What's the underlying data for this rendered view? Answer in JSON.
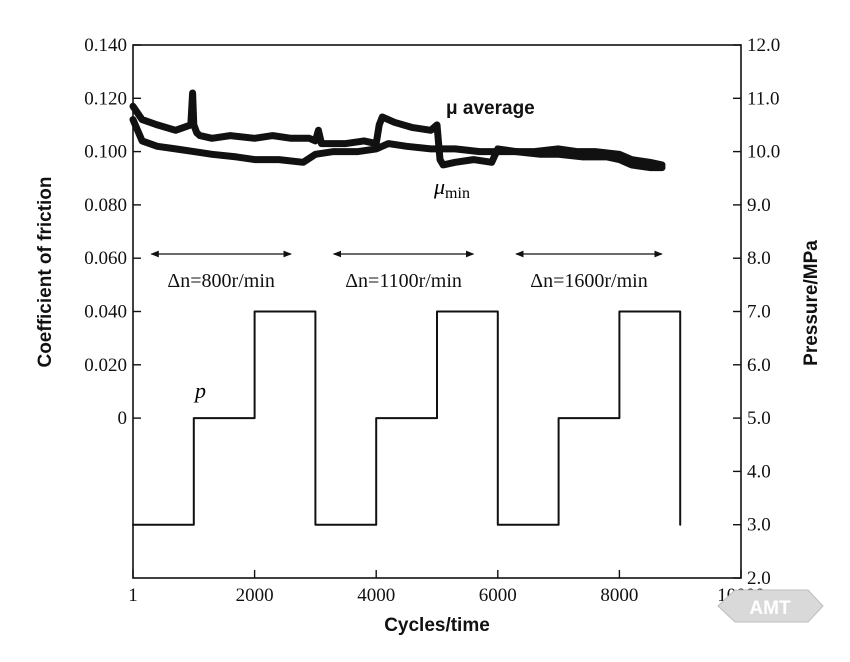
{
  "chart_data": {
    "type": "line",
    "xlabel": "Cycles/time",
    "ylabel_left": "Coefficient of friction",
    "ylabel_right": "Pressure/MPa",
    "xlim": [
      0,
      10000
    ],
    "ylim_right": [
      2.0,
      12.0
    ],
    "x_ticks": [
      {
        "value": 0,
        "label": "1"
      },
      {
        "value": 2000,
        "label": "2000"
      },
      {
        "value": 4000,
        "label": "4000"
      },
      {
        "value": 6000,
        "label": "6000"
      },
      {
        "value": 8000,
        "label": "8000"
      },
      {
        "value": 10000,
        "label": "10000"
      }
    ],
    "left_ticks": [
      {
        "at": 12.0,
        "label": "0.140"
      },
      {
        "at": 11.0,
        "label": "0.120"
      },
      {
        "at": 10.0,
        "label": "0.100"
      },
      {
        "at": 9.0,
        "label": "0.080"
      },
      {
        "at": 8.0,
        "label": "0.060"
      },
      {
        "at": 7.0,
        "label": "0.040"
      },
      {
        "at": 6.0,
        "label": "0.020"
      },
      {
        "at": 5.0,
        "label": "0"
      }
    ],
    "right_ticks": [
      {
        "value": 12.0,
        "label": "12.0"
      },
      {
        "value": 11.0,
        "label": "11.0"
      },
      {
        "value": 10.0,
        "label": "10.0"
      },
      {
        "value": 9.0,
        "label": "9.0"
      },
      {
        "value": 8.0,
        "label": "8.0"
      },
      {
        "value": 7.0,
        "label": "7.0"
      },
      {
        "value": 6.0,
        "label": "6.0"
      },
      {
        "value": 5.0,
        "label": "5.0"
      },
      {
        "value": 4.0,
        "label": "4.0"
      },
      {
        "value": 3.0,
        "label": "3.0"
      },
      {
        "value": 2.0,
        "label": "2.0"
      }
    ],
    "series": [
      {
        "name": "μ average",
        "axis": "left",
        "x": [
          0,
          150,
          400,
          700,
          950,
          980,
          1000,
          1050,
          1100,
          1300,
          1600,
          2000,
          2300,
          2600,
          2900,
          3000,
          3050,
          3100,
          3500,
          3800,
          4000,
          4050,
          4100,
          4300,
          4600,
          4900,
          5000,
          5050,
          5100,
          5300,
          5600,
          5900,
          6000,
          6300,
          6600,
          7000,
          7300,
          7600,
          8000,
          8200,
          8500,
          8700
        ],
        "y": [
          0.117,
          0.112,
          0.11,
          0.108,
          0.11,
          0.122,
          0.11,
          0.107,
          0.106,
          0.105,
          0.106,
          0.105,
          0.106,
          0.105,
          0.105,
          0.104,
          0.108,
          0.103,
          0.103,
          0.104,
          0.103,
          0.11,
          0.113,
          0.111,
          0.109,
          0.108,
          0.11,
          0.097,
          0.095,
          0.096,
          0.097,
          0.096,
          0.101,
          0.1,
          0.1,
          0.101,
          0.1,
          0.1,
          0.099,
          0.097,
          0.096,
          0.095
        ]
      },
      {
        "name": "μmin",
        "axis": "left",
        "x": [
          0,
          150,
          400,
          700,
          1000,
          1300,
          1700,
          2000,
          2400,
          2800,
          3000,
          3300,
          3700,
          4000,
          4200,
          4500,
          4900,
          5000,
          5300,
          5700,
          6000,
          6300,
          6700,
          7000,
          7400,
          7800,
          8000,
          8200,
          8500,
          8700
        ],
        "y": [
          0.112,
          0.104,
          0.102,
          0.101,
          0.1,
          0.099,
          0.098,
          0.097,
          0.097,
          0.096,
          0.099,
          0.1,
          0.1,
          0.101,
          0.103,
          0.102,
          0.101,
          0.101,
          0.101,
          0.1,
          0.1,
          0.1,
          0.099,
          0.099,
          0.098,
          0.098,
          0.097,
          0.095,
          0.094,
          0.094
        ]
      },
      {
        "name": "p",
        "axis": "right",
        "step": true,
        "x": [
          0,
          1000,
          1000,
          2000,
          2000,
          3000,
          3000,
          4000,
          4000,
          5000,
          5000,
          6000,
          6000,
          7000,
          7000,
          8000,
          8000,
          9000,
          9000
        ],
        "y": [
          3.0,
          3.0,
          5.0,
          5.0,
          7.0,
          7.0,
          3.0,
          3.0,
          5.0,
          5.0,
          7.0,
          7.0,
          3.0,
          3.0,
          5.0,
          5.0,
          7.0,
          7.0,
          3.0
        ]
      }
    ],
    "annotations": [
      {
        "name": "mu_avg",
        "text": "μ average"
      },
      {
        "name": "mu_min_sym",
        "text": "μ"
      },
      {
        "name": "mu_min_sub",
        "text": "min"
      },
      {
        "name": "p",
        "text": "p"
      },
      {
        "name": "dn1",
        "text": "Δn=800r/min",
        "x_start": 300,
        "x_end": 2600
      },
      {
        "name": "dn2",
        "text": "Δn=1100r/min",
        "x_start": 3300,
        "x_end": 5600
      },
      {
        "name": "dn3",
        "text": "Δn=1600r/min",
        "x_start": 6300,
        "x_end": 8700
      }
    ],
    "grid": false,
    "legend": "none"
  },
  "watermark": {
    "text": "AMT"
  }
}
